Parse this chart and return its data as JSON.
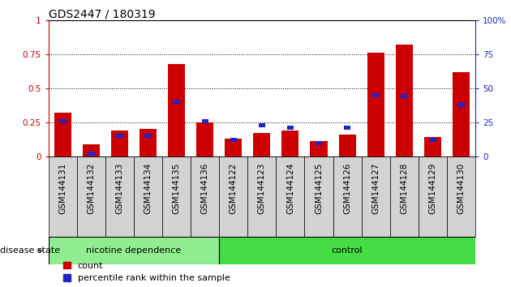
{
  "title": "GDS2447 / 180319",
  "samples": [
    "GSM144131",
    "GSM144132",
    "GSM144133",
    "GSM144134",
    "GSM144135",
    "GSM144136",
    "GSM144122",
    "GSM144123",
    "GSM144124",
    "GSM144125",
    "GSM144126",
    "GSM144127",
    "GSM144128",
    "GSM144129",
    "GSM144130"
  ],
  "red_bars": [
    0.32,
    0.09,
    0.19,
    0.2,
    0.68,
    0.25,
    0.13,
    0.17,
    0.19,
    0.11,
    0.16,
    0.76,
    0.82,
    0.14,
    0.62
  ],
  "blue_markers": [
    0.26,
    0.02,
    0.15,
    0.15,
    0.4,
    0.26,
    0.12,
    0.23,
    0.21,
    0.1,
    0.21,
    0.45,
    0.44,
    0.12,
    0.38
  ],
  "group1_label": "nicotine dependence",
  "group2_label": "control",
  "group1_count": 6,
  "group2_count": 9,
  "disease_state_label": "disease state",
  "legend_red": "count",
  "legend_blue": "percentile rank within the sample",
  "bar_color": "#cc0000",
  "marker_color": "#2222cc",
  "group1_bg": "#90ee90",
  "group2_bg": "#44dd44",
  "sample_bg": "#d3d3d3",
  "left_axis_color": "#cc0000",
  "right_axis_color": "#2222cc",
  "ylim": [
    0,
    1
  ],
  "yticks_left": [
    0,
    0.25,
    0.5,
    0.75,
    1.0
  ],
  "yticks_right": [
    0,
    25,
    50,
    75,
    100
  ],
  "title_fontsize": 10,
  "tick_fontsize": 7.5,
  "label_fontsize": 8
}
